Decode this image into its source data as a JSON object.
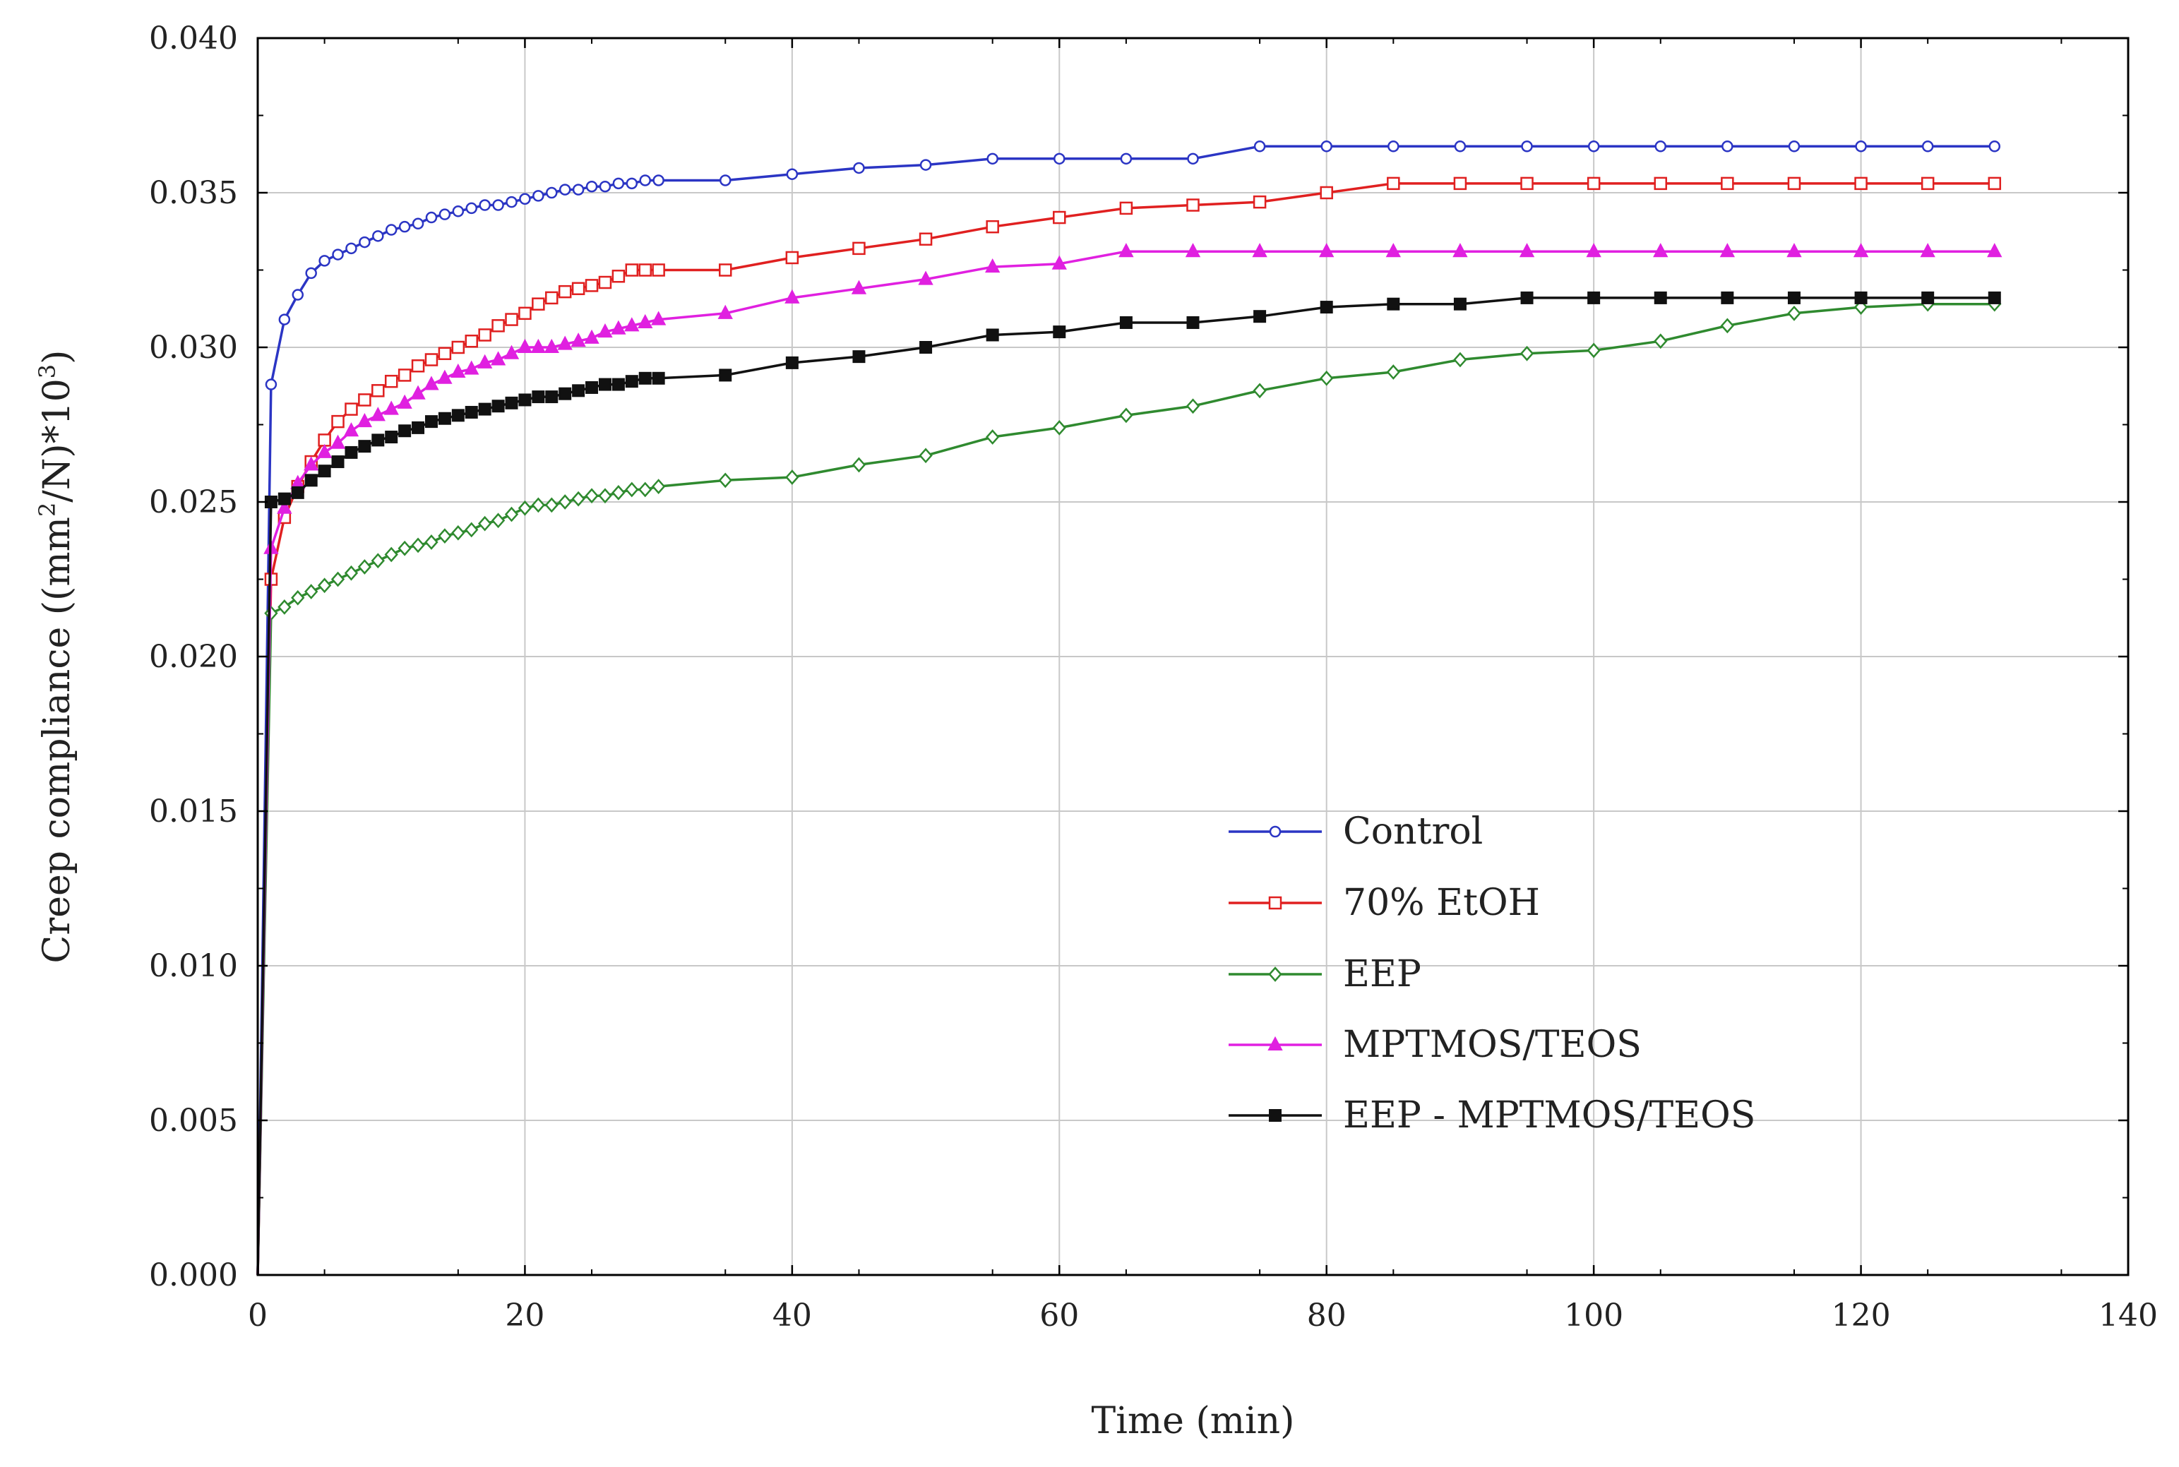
{
  "chart_data": {
    "type": "line",
    "title": "",
    "xlabel": "Time (min)",
    "ylabel_parts": [
      "Creep compliance ((mm",
      "2",
      "/N)*10",
      "3",
      ")"
    ],
    "xlim": [
      0,
      140
    ],
    "ylim": [
      0,
      0.04
    ],
    "x_ticks": [
      "0",
      "20",
      "40",
      "60",
      "80",
      "100",
      "120",
      "140"
    ],
    "y_ticks": [
      "0.000",
      "0.005",
      "0.010",
      "0.015",
      "0.020",
      "0.025",
      "0.030",
      "0.035",
      "0.040"
    ],
    "grid": true,
    "legend_position": "center-right",
    "series": [
      {
        "name": "Control",
        "color": "#2b35c4",
        "marker": "circle",
        "points": [
          [
            0,
            0
          ],
          [
            1,
            0.0288
          ],
          [
            2,
            0.0309
          ],
          [
            3,
            0.0317
          ],
          [
            4,
            0.0324
          ],
          [
            5,
            0.0328
          ],
          [
            6,
            0.033
          ],
          [
            7,
            0.0332
          ],
          [
            8,
            0.0334
          ],
          [
            9,
            0.0336
          ],
          [
            10,
            0.0338
          ],
          [
            11,
            0.0339
          ],
          [
            12,
            0.034
          ],
          [
            13,
            0.0342
          ],
          [
            14,
            0.0343
          ],
          [
            15,
            0.0344
          ],
          [
            16,
            0.0345
          ],
          [
            17,
            0.0346
          ],
          [
            18,
            0.0346
          ],
          [
            19,
            0.0347
          ],
          [
            20,
            0.0348
          ],
          [
            21,
            0.0349
          ],
          [
            22,
            0.035
          ],
          [
            23,
            0.0351
          ],
          [
            24,
            0.0351
          ],
          [
            25,
            0.0352
          ],
          [
            26,
            0.0352
          ],
          [
            27,
            0.0353
          ],
          [
            28,
            0.0353
          ],
          [
            29,
            0.0354
          ],
          [
            30,
            0.0354
          ],
          [
            35,
            0.0354
          ],
          [
            40,
            0.0356
          ],
          [
            45,
            0.0358
          ],
          [
            50,
            0.0359
          ],
          [
            55,
            0.0361
          ],
          [
            60,
            0.0361
          ],
          [
            65,
            0.0361
          ],
          [
            70,
            0.0361
          ],
          [
            75,
            0.0365
          ],
          [
            80,
            0.0365
          ],
          [
            85,
            0.0365
          ],
          [
            90,
            0.0365
          ],
          [
            95,
            0.0365
          ],
          [
            100,
            0.0365
          ],
          [
            105,
            0.0365
          ],
          [
            110,
            0.0365
          ],
          [
            115,
            0.0365
          ],
          [
            120,
            0.0365
          ],
          [
            125,
            0.0365
          ],
          [
            130,
            0.0365
          ]
        ]
      },
      {
        "name": "70% EtOH",
        "color": "#e02020",
        "marker": "square",
        "points": [
          [
            0,
            0
          ],
          [
            1,
            0.0225
          ],
          [
            2,
            0.0245
          ],
          [
            3,
            0.0255
          ],
          [
            4,
            0.0263
          ],
          [
            5,
            0.027
          ],
          [
            6,
            0.0276
          ],
          [
            7,
            0.028
          ],
          [
            8,
            0.0283
          ],
          [
            9,
            0.0286
          ],
          [
            10,
            0.0289
          ],
          [
            11,
            0.0291
          ],
          [
            12,
            0.0294
          ],
          [
            13,
            0.0296
          ],
          [
            14,
            0.0298
          ],
          [
            15,
            0.03
          ],
          [
            16,
            0.0302
          ],
          [
            17,
            0.0304
          ],
          [
            18,
            0.0307
          ],
          [
            19,
            0.0309
          ],
          [
            20,
            0.0311
          ],
          [
            21,
            0.0314
          ],
          [
            22,
            0.0316
          ],
          [
            23,
            0.0318
          ],
          [
            24,
            0.0319
          ],
          [
            25,
            0.032
          ],
          [
            26,
            0.0321
          ],
          [
            27,
            0.0323
          ],
          [
            28,
            0.0325
          ],
          [
            29,
            0.0325
          ],
          [
            30,
            0.0325
          ],
          [
            35,
            0.0325
          ],
          [
            40,
            0.0329
          ],
          [
            45,
            0.0332
          ],
          [
            50,
            0.0335
          ],
          [
            55,
            0.0339
          ],
          [
            60,
            0.0342
          ],
          [
            65,
            0.0345
          ],
          [
            70,
            0.0346
          ],
          [
            75,
            0.0347
          ],
          [
            80,
            0.035
          ],
          [
            85,
            0.0353
          ],
          [
            90,
            0.0353
          ],
          [
            95,
            0.0353
          ],
          [
            100,
            0.0353
          ],
          [
            105,
            0.0353
          ],
          [
            110,
            0.0353
          ],
          [
            115,
            0.0353
          ],
          [
            120,
            0.0353
          ],
          [
            125,
            0.0353
          ],
          [
            130,
            0.0353
          ]
        ]
      },
      {
        "name": "EEP",
        "color": "#2f8a2f",
        "marker": "diamond",
        "points": [
          [
            0,
            0
          ],
          [
            1,
            0.0214
          ],
          [
            2,
            0.0216
          ],
          [
            3,
            0.0219
          ],
          [
            4,
            0.0221
          ],
          [
            5,
            0.0223
          ],
          [
            6,
            0.0225
          ],
          [
            7,
            0.0227
          ],
          [
            8,
            0.0229
          ],
          [
            9,
            0.0231
          ],
          [
            10,
            0.0233
          ],
          [
            11,
            0.0235
          ],
          [
            12,
            0.0236
          ],
          [
            13,
            0.0237
          ],
          [
            14,
            0.0239
          ],
          [
            15,
            0.024
          ],
          [
            16,
            0.0241
          ],
          [
            17,
            0.0243
          ],
          [
            18,
            0.0244
          ],
          [
            19,
            0.0246
          ],
          [
            20,
            0.0248
          ],
          [
            21,
            0.0249
          ],
          [
            22,
            0.0249
          ],
          [
            23,
            0.025
          ],
          [
            24,
            0.0251
          ],
          [
            25,
            0.0252
          ],
          [
            26,
            0.0252
          ],
          [
            27,
            0.0253
          ],
          [
            28,
            0.0254
          ],
          [
            29,
            0.0254
          ],
          [
            30,
            0.0255
          ],
          [
            35,
            0.0257
          ],
          [
            40,
            0.0258
          ],
          [
            45,
            0.0262
          ],
          [
            50,
            0.0265
          ],
          [
            55,
            0.0271
          ],
          [
            60,
            0.0274
          ],
          [
            65,
            0.0278
          ],
          [
            70,
            0.0281
          ],
          [
            75,
            0.0286
          ],
          [
            80,
            0.029
          ],
          [
            85,
            0.0292
          ],
          [
            90,
            0.0296
          ],
          [
            95,
            0.0298
          ],
          [
            100,
            0.0299
          ],
          [
            105,
            0.0302
          ],
          [
            110,
            0.0307
          ],
          [
            115,
            0.0311
          ],
          [
            120,
            0.0313
          ],
          [
            125,
            0.0314
          ],
          [
            130,
            0.0314
          ]
        ]
      },
      {
        "name": "MPTMOS/TEOS",
        "color": "#e020e0",
        "marker": "triangle",
        "points": [
          [
            0,
            0
          ],
          [
            1,
            0.0235
          ],
          [
            2,
            0.0248
          ],
          [
            3,
            0.0256
          ],
          [
            4,
            0.0262
          ],
          [
            5,
            0.0266
          ],
          [
            6,
            0.0269
          ],
          [
            7,
            0.0273
          ],
          [
            8,
            0.0276
          ],
          [
            9,
            0.0278
          ],
          [
            10,
            0.028
          ],
          [
            11,
            0.0282
          ],
          [
            12,
            0.0285
          ],
          [
            13,
            0.0288
          ],
          [
            14,
            0.029
          ],
          [
            15,
            0.0292
          ],
          [
            16,
            0.0293
          ],
          [
            17,
            0.0295
          ],
          [
            18,
            0.0296
          ],
          [
            19,
            0.0298
          ],
          [
            20,
            0.03
          ],
          [
            21,
            0.03
          ],
          [
            22,
            0.03
          ],
          [
            23,
            0.0301
          ],
          [
            24,
            0.0302
          ],
          [
            25,
            0.0303
          ],
          [
            26,
            0.0305
          ],
          [
            27,
            0.0306
          ],
          [
            28,
            0.0307
          ],
          [
            29,
            0.0308
          ],
          [
            30,
            0.0309
          ],
          [
            35,
            0.0311
          ],
          [
            40,
            0.0316
          ],
          [
            45,
            0.0319
          ],
          [
            50,
            0.0322
          ],
          [
            55,
            0.0326
          ],
          [
            60,
            0.0327
          ],
          [
            65,
            0.0331
          ],
          [
            70,
            0.0331
          ],
          [
            75,
            0.0331
          ],
          [
            80,
            0.0331
          ],
          [
            85,
            0.0331
          ],
          [
            90,
            0.0331
          ],
          [
            95,
            0.0331
          ],
          [
            100,
            0.0331
          ],
          [
            105,
            0.0331
          ],
          [
            110,
            0.0331
          ],
          [
            115,
            0.0331
          ],
          [
            120,
            0.0331
          ],
          [
            125,
            0.0331
          ],
          [
            130,
            0.0331
          ]
        ]
      },
      {
        "name": "EEP - MPTMOS/TEOS",
        "color": "#111111",
        "marker": "filled-square",
        "points": [
          [
            0,
            0
          ],
          [
            1,
            0.025
          ],
          [
            2,
            0.0251
          ],
          [
            3,
            0.0253
          ],
          [
            4,
            0.0257
          ],
          [
            5,
            0.026
          ],
          [
            6,
            0.0263
          ],
          [
            7,
            0.0266
          ],
          [
            8,
            0.0268
          ],
          [
            9,
            0.027
          ],
          [
            10,
            0.0271
          ],
          [
            11,
            0.0273
          ],
          [
            12,
            0.0274
          ],
          [
            13,
            0.0276
          ],
          [
            14,
            0.0277
          ],
          [
            15,
            0.0278
          ],
          [
            16,
            0.0279
          ],
          [
            17,
            0.028
          ],
          [
            18,
            0.0281
          ],
          [
            19,
            0.0282
          ],
          [
            20,
            0.0283
          ],
          [
            21,
            0.0284
          ],
          [
            22,
            0.0284
          ],
          [
            23,
            0.0285
          ],
          [
            24,
            0.0286
          ],
          [
            25,
            0.0287
          ],
          [
            26,
            0.0288
          ],
          [
            27,
            0.0288
          ],
          [
            28,
            0.0289
          ],
          [
            29,
            0.029
          ],
          [
            30,
            0.029
          ],
          [
            35,
            0.0291
          ],
          [
            40,
            0.0295
          ],
          [
            45,
            0.0297
          ],
          [
            50,
            0.03
          ],
          [
            55,
            0.0304
          ],
          [
            60,
            0.0305
          ],
          [
            65,
            0.0308
          ],
          [
            70,
            0.0308
          ],
          [
            75,
            0.031
          ],
          [
            80,
            0.0313
          ],
          [
            85,
            0.0314
          ],
          [
            90,
            0.0314
          ],
          [
            95,
            0.0316
          ],
          [
            100,
            0.0316
          ],
          [
            105,
            0.0316
          ],
          [
            110,
            0.0316
          ],
          [
            115,
            0.0316
          ],
          [
            120,
            0.0316
          ],
          [
            125,
            0.0316
          ],
          [
            130,
            0.0316
          ]
        ]
      }
    ]
  }
}
